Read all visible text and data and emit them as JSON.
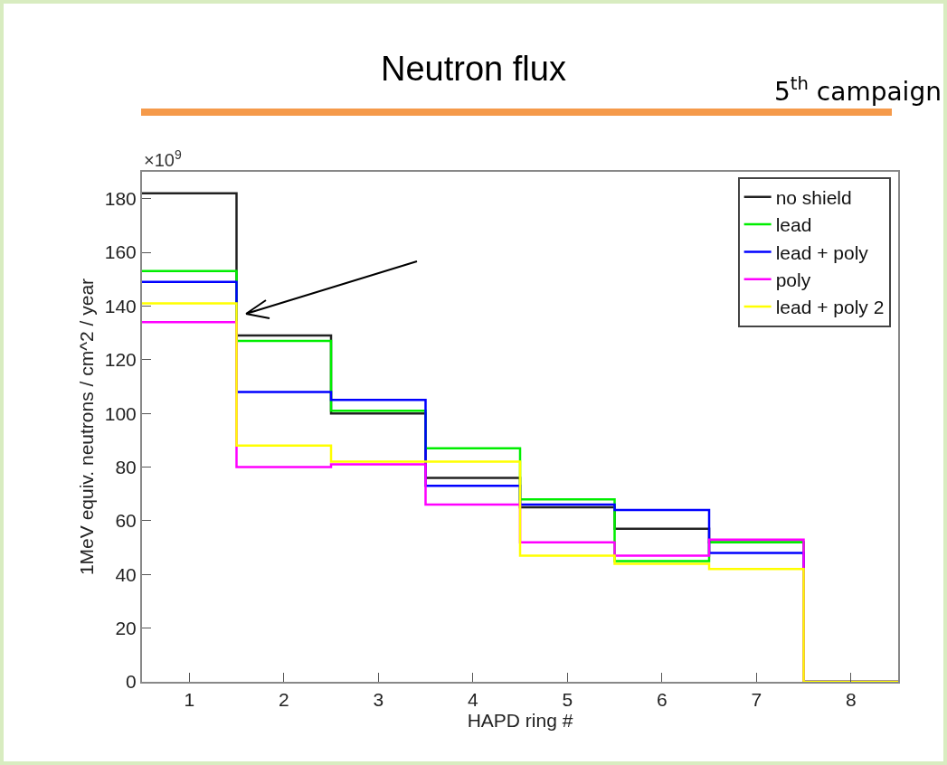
{
  "chart_data": {
    "type": "histogram",
    "title": "Neutron flux",
    "subtitle": "5$^{th}$ campaign",
    "xlabel": "HAPD ring #",
    "ylabel": "1MeV equiv. neutrons / cm^2 / year",
    "annotations": [
      "×10$^{9}$"
    ],
    "bins": [
      0.5,
      1.5,
      2.5,
      3.5,
      4.5,
      5.5,
      6.5,
      7.5,
      8.5
    ],
    "series": [
      {
        "name": "no shield",
        "color": "#222222",
        "values": [
          182,
          129,
          100,
          76,
          65,
          57,
          52,
          0
        ]
      },
      {
        "name": "lead",
        "color": "#00ee00",
        "values": [
          153,
          127,
          101,
          87,
          68,
          45,
          52,
          0
        ]
      },
      {
        "name": "lead + poly",
        "color": "#0000ff",
        "values": [
          149,
          108,
          105,
          73,
          66,
          64,
          48,
          0
        ]
      },
      {
        "name": "poly",
        "color": "#ff00ff",
        "values": [
          134,
          80,
          81,
          66,
          52,
          47,
          53,
          0
        ]
      },
      {
        "name": "lead + poly 2",
        "color": "#ffff00",
        "values": [
          141,
          88,
          82,
          82,
          47,
          44,
          42,
          0
        ]
      }
    ],
    "xlim": [
      0.5,
      8.5
    ],
    "xticks": [
      1,
      2,
      3,
      4,
      5,
      6,
      7,
      8
    ],
    "ylim": [
      0,
      190
    ],
    "yticks": [
      0,
      20,
      40,
      60,
      80,
      100,
      120,
      140,
      160,
      180
    ],
    "grid": false,
    "legend": "top right"
  }
}
